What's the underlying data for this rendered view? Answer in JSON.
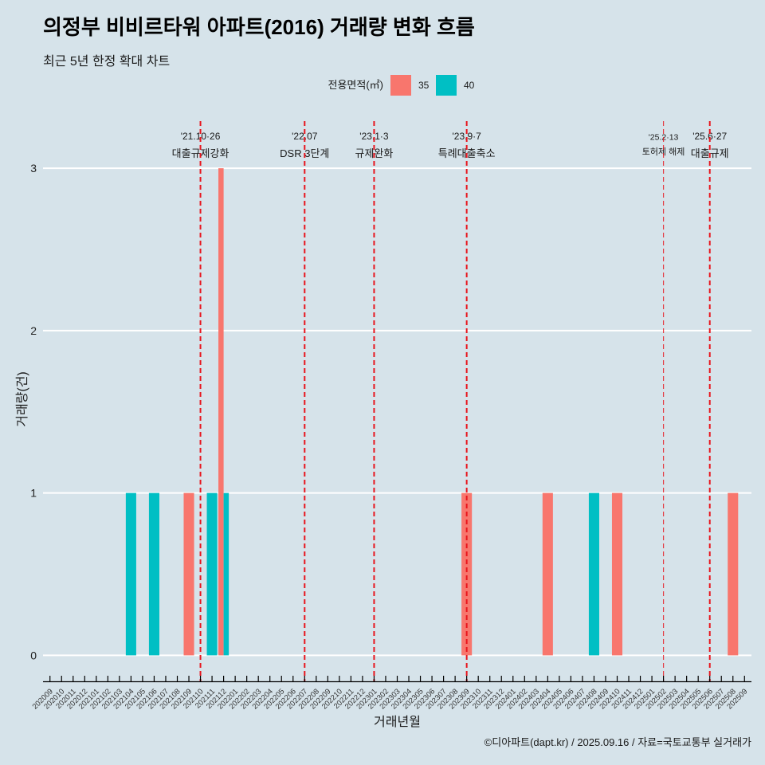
{
  "chart_data": {
    "type": "bar",
    "title": "의정부 비비르타워 아파트(2016) 거래량 변화 흐름",
    "subtitle": "최근 5년 한정 확대 차트",
    "xlabel": "거래년월",
    "ylabel": "거래량(건)",
    "caption": "©디아파트(dapt.kr) / 2025.09.16 / 자료=국토교통부 실거래가",
    "legend": {
      "title": "전용면적(㎡)",
      "position": "top"
    },
    "categories": [
      "202009",
      "202010",
      "202011",
      "202012",
      "202101",
      "202102",
      "202103",
      "202104",
      "202105",
      "202106",
      "202107",
      "202108",
      "202109",
      "202110",
      "202111",
      "202112",
      "202201",
      "202202",
      "202203",
      "202204",
      "202205",
      "202206",
      "202207",
      "202208",
      "202209",
      "202210",
      "202211",
      "202212",
      "202301",
      "202302",
      "202303",
      "202304",
      "202305",
      "202306",
      "202307",
      "202308",
      "202309",
      "202310",
      "202311",
      "202312",
      "202401",
      "202402",
      "202403",
      "202404",
      "202405",
      "202406",
      "202407",
      "202408",
      "202409",
      "202410",
      "202411",
      "202412",
      "202501",
      "202502",
      "202503",
      "202504",
      "202505",
      "202506",
      "202507",
      "202508",
      "202509"
    ],
    "series": [
      {
        "name": "35",
        "color": "#F8766D",
        "values": [
          0,
          0,
          0,
          0,
          0,
          0,
          0,
          0,
          0,
          0,
          0,
          0,
          1,
          0,
          0,
          3,
          0,
          0,
          0,
          0,
          0,
          0,
          0,
          0,
          0,
          0,
          0,
          0,
          0,
          0,
          0,
          0,
          0,
          0,
          0,
          0,
          1,
          0,
          0,
          0,
          0,
          0,
          0,
          1,
          0,
          0,
          0,
          0,
          0,
          1,
          0,
          0,
          0,
          0,
          0,
          0,
          0,
          0,
          0,
          1,
          0
        ]
      },
      {
        "name": "40",
        "color": "#00BFC4",
        "values": [
          0,
          0,
          0,
          0,
          0,
          0,
          0,
          1,
          0,
          1,
          0,
          0,
          0,
          0,
          1,
          1,
          0,
          0,
          0,
          0,
          0,
          0,
          0,
          0,
          0,
          0,
          0,
          0,
          0,
          0,
          0,
          0,
          0,
          0,
          0,
          0,
          0,
          0,
          0,
          0,
          0,
          0,
          0,
          0,
          0,
          0,
          0,
          1,
          0,
          0,
          0,
          0,
          0,
          0,
          0,
          0,
          0,
          0,
          0,
          0,
          0
        ]
      }
    ],
    "ylim": [
      -0.16,
      3.3
    ],
    "yticks": [
      0,
      1,
      2,
      3
    ],
    "grid": {
      "horizontal": true,
      "vertical": false,
      "color": "#FFFFFF"
    },
    "annotation_color": "#E8141C",
    "annotations": [
      {
        "x": "202110",
        "date": "'21.10·26",
        "label": "대출규제강화",
        "minor": false
      },
      {
        "x": "202207",
        "date": "'22.07",
        "label": "DSR 3단계",
        "minor": false
      },
      {
        "x": "202301",
        "date": "'23.1·3",
        "label": "규제완화",
        "minor": false
      },
      {
        "x": "202309",
        "date": "'23.9·7",
        "label": "특례대출축소",
        "minor": false
      },
      {
        "x": "202502",
        "date": "'25.2·13",
        "label": "토허제 해제",
        "minor": true
      },
      {
        "x": "202506",
        "date": "'25.6·27",
        "label": "대출규제",
        "minor": false
      }
    ],
    "background": "#D6E3EA"
  }
}
